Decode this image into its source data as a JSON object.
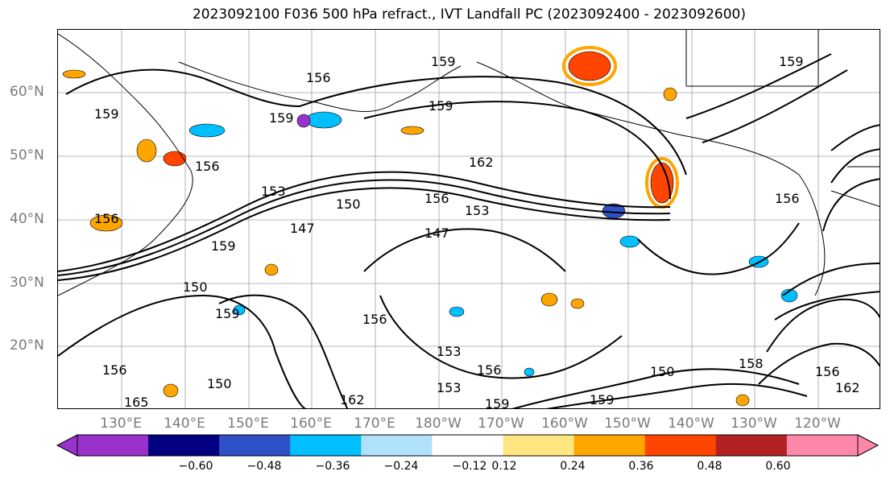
{
  "title": "2023092100 F036 500 hPa refract., IVT Landfall PC (2023092400 - 2023092600)",
  "map": {
    "lat_labels": [
      "60°N",
      "50°N",
      "40°N",
      "30°N",
      "20°N"
    ],
    "lon_labels": [
      "130°E",
      "140°E",
      "150°E",
      "160°E",
      "170°E",
      "180°W",
      "170°W",
      "160°W",
      "150°W",
      "140°W",
      "130°W",
      "120°W"
    ],
    "contour_labels": [
      "159",
      "159",
      "156",
      "159",
      "159",
      "156",
      "162",
      "150",
      "147",
      "156",
      "153",
      "147",
      "159",
      "150",
      "156",
      "153",
      "159",
      "156",
      "153",
      "162",
      "165",
      "156",
      "150",
      "159",
      "156",
      "153",
      "159",
      "150",
      "156",
      "159",
      "156",
      "162",
      "158"
    ]
  },
  "colorbar": {
    "colors": [
      "#9932cc",
      "#000080",
      "#3050c8",
      "#00bfff",
      "#b0e0fa",
      "#ffffff",
      "#ffe680",
      "#ffa500",
      "#ff4500",
      "#b22222",
      "#ff88aa"
    ],
    "ticks": [
      "−0.60",
      "−0.48",
      "−0.36",
      "−0.24",
      "−0.12",
      "0.12",
      "0.24",
      "0.36",
      "0.48",
      "0.60"
    ]
  },
  "colors": {
    "contour": "#000000",
    "grid": "#999999",
    "coast": "#000000",
    "label": "#7a7a7a"
  }
}
